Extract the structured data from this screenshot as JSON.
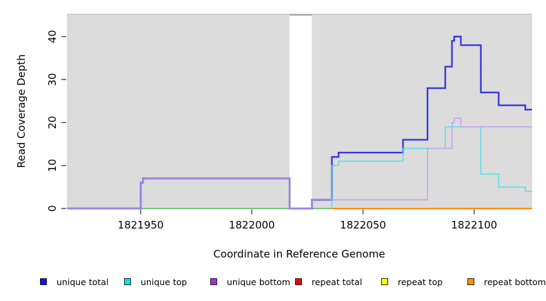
{
  "chart_data": {
    "type": "line",
    "subtype": "step-coverage",
    "title": "",
    "xlabel": "Coordinate in Reference Genome",
    "ylabel": "Read Coverage Depth",
    "x_ticks": [
      1821950,
      1822000,
      1822050,
      1822100
    ],
    "y_ticks": [
      0,
      10,
      20,
      30,
      40
    ],
    "xlim": [
      1821916.8,
      1822126.1
    ],
    "ylim": [
      0,
      45.3
    ],
    "grid": false,
    "legend_position": "bottom",
    "panel_bg": "#dcdcdc",
    "gap_region": {
      "start": 1822017,
      "end": 1822027,
      "color": "#ffffff",
      "top_strip_color": "#a8a8a8"
    },
    "series": [
      {
        "name": "zero-line-green",
        "color": "#5abf63",
        "width": 1.6,
        "points": [
          [
            1821950,
            0
          ],
          [
            1822036,
            0
          ]
        ]
      },
      {
        "name": "repeat bottom",
        "color": "#ff8c00",
        "width": 2.0,
        "points": [
          [
            1822036,
            0
          ],
          [
            1822126,
            0
          ]
        ]
      },
      {
        "name": "unique total",
        "color": "#3838e0",
        "width": 2.4,
        "points": [
          [
            1821917,
            0
          ],
          [
            1821950,
            6
          ],
          [
            1821951,
            7
          ],
          [
            1822017,
            0
          ],
          [
            1822027,
            2
          ],
          [
            1822036,
            12
          ],
          [
            1822039,
            13
          ],
          [
            1822068,
            16
          ],
          [
            1822079,
            28
          ],
          [
            1822087,
            33
          ],
          [
            1822090,
            39
          ],
          [
            1822091,
            40
          ],
          [
            1822094,
            38
          ],
          [
            1822103,
            27
          ],
          [
            1822111,
            24
          ],
          [
            1822123,
            23
          ],
          [
            1822126,
            23
          ]
        ]
      },
      {
        "name": "unique top",
        "color": "#4ddee9",
        "width": 1.4,
        "points": [
          [
            1822036,
            0
          ],
          [
            1822036,
            10
          ],
          [
            1822039,
            11
          ],
          [
            1822068,
            14
          ],
          [
            1822087,
            19
          ],
          [
            1822103,
            8
          ],
          [
            1822111,
            5
          ],
          [
            1822123,
            4
          ],
          [
            1822126,
            4
          ]
        ]
      },
      {
        "name": "unique bottom",
        "color": "#c29ce8",
        "width": 1.4,
        "points": [
          [
            1821917,
            0
          ],
          [
            1821950,
            6
          ],
          [
            1821951,
            7
          ],
          [
            1822017,
            0
          ],
          [
            1822027,
            2
          ],
          [
            1822079,
            14
          ],
          [
            1822090,
            20
          ],
          [
            1822091,
            21
          ],
          [
            1822094,
            19
          ],
          [
            1822126,
            19
          ]
        ]
      }
    ],
    "legend": [
      {
        "label": "unique total",
        "color": "#1010ee"
      },
      {
        "label": "unique top",
        "color": "#00e6ee"
      },
      {
        "label": "unique bottom",
        "color": "#a32cd4"
      },
      {
        "label": "repeat total",
        "color": "#ee0000"
      },
      {
        "label": "repeat top",
        "color": "#ffff00"
      },
      {
        "label": "repeat bottom",
        "color": "#ff9100"
      }
    ]
  }
}
